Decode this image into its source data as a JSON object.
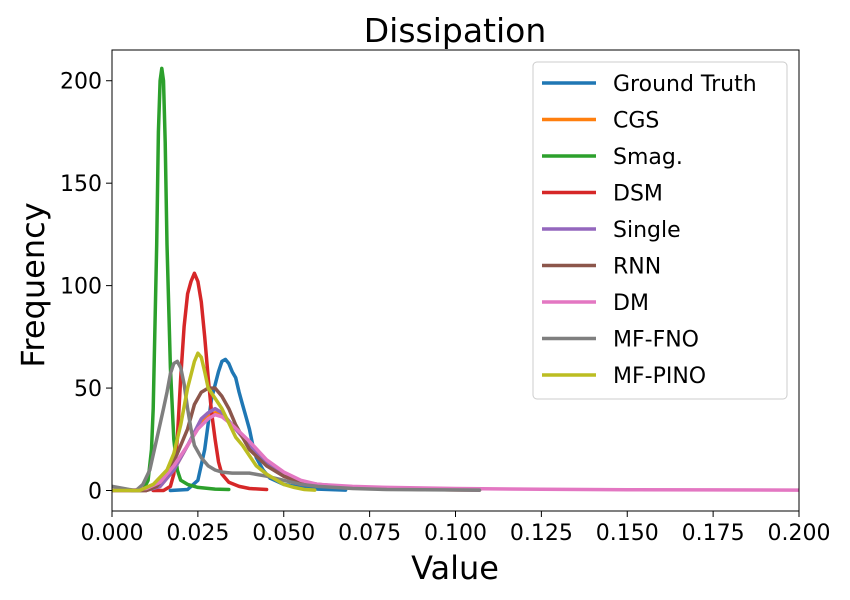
{
  "chart_data": {
    "type": "line",
    "title": "Dissipation",
    "xlabel": "Value",
    "ylabel": "Frequency",
    "xlim": [
      0.0,
      0.2
    ],
    "ylim": [
      -10,
      215
    ],
    "xticks": [
      0.0,
      0.025,
      0.05,
      0.075,
      0.1,
      0.125,
      0.15,
      0.175,
      0.2
    ],
    "xtick_labels": [
      "0.000",
      "0.025",
      "0.050",
      "0.075",
      "0.100",
      "0.125",
      "0.150",
      "0.175",
      "0.200"
    ],
    "yticks": [
      0,
      50,
      100,
      150,
      200
    ],
    "ytick_labels": [
      "0",
      "50",
      "100",
      "150",
      "200"
    ],
    "grid": false,
    "legend_position": "top-right",
    "series": [
      {
        "name": "Ground Truth",
        "color": "#1f77b4",
        "points": [
          [
            0.017,
            0
          ],
          [
            0.022,
            0.5
          ],
          [
            0.025,
            5
          ],
          [
            0.027,
            20
          ],
          [
            0.029,
            45
          ],
          [
            0.031,
            58
          ],
          [
            0.032,
            63
          ],
          [
            0.033,
            64
          ],
          [
            0.034,
            62
          ],
          [
            0.035,
            58
          ],
          [
            0.036,
            55
          ],
          [
            0.037,
            48
          ],
          [
            0.038,
            42
          ],
          [
            0.039,
            36
          ],
          [
            0.04,
            30
          ],
          [
            0.041,
            22
          ],
          [
            0.042,
            16
          ],
          [
            0.044,
            10
          ],
          [
            0.046,
            6
          ],
          [
            0.05,
            3
          ],
          [
            0.055,
            1.5
          ],
          [
            0.06,
            0.7
          ],
          [
            0.068,
            0.2
          ]
        ]
      },
      {
        "name": "CGS",
        "color": "#ff7f0e",
        "points": [
          [
            0.0,
            0
          ],
          [
            0.01,
            0
          ],
          [
            0.014,
            2
          ],
          [
            0.018,
            10
          ],
          [
            0.022,
            22
          ],
          [
            0.026,
            33
          ],
          [
            0.028,
            36
          ],
          [
            0.03,
            38
          ],
          [
            0.032,
            37
          ],
          [
            0.035,
            32
          ],
          [
            0.04,
            22
          ],
          [
            0.045,
            13
          ],
          [
            0.05,
            7
          ],
          [
            0.055,
            4
          ],
          [
            0.06,
            3
          ],
          [
            0.07,
            1.5
          ],
          [
            0.08,
            1
          ],
          [
            0.09,
            0.5
          ],
          [
            0.1,
            0.3
          ],
          [
            0.107,
            0.2
          ]
        ]
      },
      {
        "name": "Smag.",
        "color": "#2ca02c",
        "points": [
          [
            0.005,
            0
          ],
          [
            0.009,
            0
          ],
          [
            0.0105,
            5
          ],
          [
            0.0115,
            20
          ],
          [
            0.012,
            40
          ],
          [
            0.013,
            120
          ],
          [
            0.0135,
            175
          ],
          [
            0.014,
            200
          ],
          [
            0.0145,
            206
          ],
          [
            0.015,
            200
          ],
          [
            0.0155,
            170
          ],
          [
            0.016,
            120
          ],
          [
            0.017,
            60
          ],
          [
            0.018,
            25
          ],
          [
            0.019,
            10
          ],
          [
            0.02,
            5
          ],
          [
            0.022,
            3
          ],
          [
            0.025,
            1.5
          ],
          [
            0.03,
            0.7
          ],
          [
            0.034,
            0.5
          ]
        ]
      },
      {
        "name": "DSM",
        "color": "#d62728",
        "points": [
          [
            0.012,
            0
          ],
          [
            0.015,
            0
          ],
          [
            0.017,
            2
          ],
          [
            0.018,
            8
          ],
          [
            0.019,
            25
          ],
          [
            0.02,
            55
          ],
          [
            0.021,
            80
          ],
          [
            0.022,
            96
          ],
          [
            0.023,
            102
          ],
          [
            0.024,
            106
          ],
          [
            0.025,
            102
          ],
          [
            0.026,
            92
          ],
          [
            0.027,
            75
          ],
          [
            0.028,
            55
          ],
          [
            0.029,
            38
          ],
          [
            0.03,
            25
          ],
          [
            0.031,
            14
          ],
          [
            0.032,
            8
          ],
          [
            0.034,
            4
          ],
          [
            0.037,
            2
          ],
          [
            0.04,
            1
          ],
          [
            0.045,
            0.5
          ]
        ]
      },
      {
        "name": "Single",
        "color": "#9467bd",
        "points": [
          [
            0.0,
            0
          ],
          [
            0.01,
            0
          ],
          [
            0.014,
            2
          ],
          [
            0.018,
            10
          ],
          [
            0.022,
            22
          ],
          [
            0.026,
            35
          ],
          [
            0.028,
            38
          ],
          [
            0.03,
            40
          ],
          [
            0.032,
            38
          ],
          [
            0.035,
            32
          ],
          [
            0.04,
            22
          ],
          [
            0.045,
            13
          ],
          [
            0.05,
            7
          ],
          [
            0.055,
            4
          ],
          [
            0.06,
            3
          ],
          [
            0.07,
            1.5
          ],
          [
            0.08,
            1
          ],
          [
            0.09,
            0.5
          ],
          [
            0.107,
            0.2
          ]
        ]
      },
      {
        "name": "RNN",
        "color": "#8c564b",
        "points": [
          [
            0.0,
            0
          ],
          [
            0.01,
            0
          ],
          [
            0.013,
            2
          ],
          [
            0.016,
            8
          ],
          [
            0.019,
            18
          ],
          [
            0.022,
            30
          ],
          [
            0.024,
            42
          ],
          [
            0.026,
            48
          ],
          [
            0.028,
            50
          ],
          [
            0.03,
            50
          ],
          [
            0.032,
            46
          ],
          [
            0.034,
            40
          ],
          [
            0.036,
            32
          ],
          [
            0.04,
            20
          ],
          [
            0.045,
            12
          ],
          [
            0.05,
            7
          ],
          [
            0.055,
            4
          ],
          [
            0.06,
            2.5
          ],
          [
            0.07,
            1.5
          ],
          [
            0.08,
            1
          ],
          [
            0.09,
            0.6
          ],
          [
            0.107,
            0.3
          ]
        ]
      },
      {
        "name": "DM",
        "color": "#e377c2",
        "points": [
          [
            0.0,
            0
          ],
          [
            0.005,
            0
          ],
          [
            0.01,
            1
          ],
          [
            0.014,
            4
          ],
          [
            0.018,
            12
          ],
          [
            0.022,
            22
          ],
          [
            0.025,
            30
          ],
          [
            0.028,
            35
          ],
          [
            0.03,
            37
          ],
          [
            0.032,
            36
          ],
          [
            0.035,
            32
          ],
          [
            0.04,
            24
          ],
          [
            0.045,
            15
          ],
          [
            0.05,
            9
          ],
          [
            0.055,
            5
          ],
          [
            0.06,
            3
          ],
          [
            0.07,
            2
          ],
          [
            0.08,
            1.5
          ],
          [
            0.1,
            1
          ],
          [
            0.125,
            0.6
          ],
          [
            0.15,
            0.4
          ],
          [
            0.175,
            0.3
          ],
          [
            0.2,
            0.2
          ]
        ]
      },
      {
        "name": "MF-FNO",
        "color": "#7f7f7f",
        "points": [
          [
            0.0,
            2
          ],
          [
            0.005,
            0.5
          ],
          [
            0.007,
            0
          ],
          [
            0.009,
            3
          ],
          [
            0.011,
            10
          ],
          [
            0.013,
            25
          ],
          [
            0.015,
            40
          ],
          [
            0.016,
            48
          ],
          [
            0.017,
            57
          ],
          [
            0.018,
            62
          ],
          [
            0.019,
            63
          ],
          [
            0.02,
            60
          ],
          [
            0.021,
            52
          ],
          [
            0.022,
            40
          ],
          [
            0.023,
            30
          ],
          [
            0.024,
            22
          ],
          [
            0.026,
            16
          ],
          [
            0.028,
            12
          ],
          [
            0.03,
            10
          ],
          [
            0.032,
            9
          ],
          [
            0.035,
            8.5
          ],
          [
            0.04,
            8.5
          ],
          [
            0.045,
            7
          ],
          [
            0.05,
            5
          ],
          [
            0.055,
            3
          ],
          [
            0.06,
            2
          ],
          [
            0.07,
            1
          ],
          [
            0.08,
            0.5
          ],
          [
            0.107,
            0.2
          ]
        ]
      },
      {
        "name": "MF-PINO",
        "color": "#bcbd22",
        "points": [
          [
            0.0,
            0
          ],
          [
            0.008,
            0
          ],
          [
            0.012,
            3
          ],
          [
            0.016,
            10
          ],
          [
            0.018,
            18
          ],
          [
            0.02,
            32
          ],
          [
            0.022,
            50
          ],
          [
            0.024,
            63
          ],
          [
            0.025,
            67
          ],
          [
            0.026,
            65
          ],
          [
            0.027,
            58
          ],
          [
            0.028,
            50
          ],
          [
            0.03,
            45
          ],
          [
            0.032,
            40
          ],
          [
            0.034,
            33
          ],
          [
            0.036,
            26
          ],
          [
            0.038,
            22
          ],
          [
            0.04,
            17
          ],
          [
            0.042,
            12
          ],
          [
            0.045,
            8
          ],
          [
            0.048,
            5
          ],
          [
            0.05,
            3
          ],
          [
            0.053,
            1.5
          ],
          [
            0.056,
            0.5
          ],
          [
            0.059,
            0.2
          ]
        ]
      }
    ]
  }
}
